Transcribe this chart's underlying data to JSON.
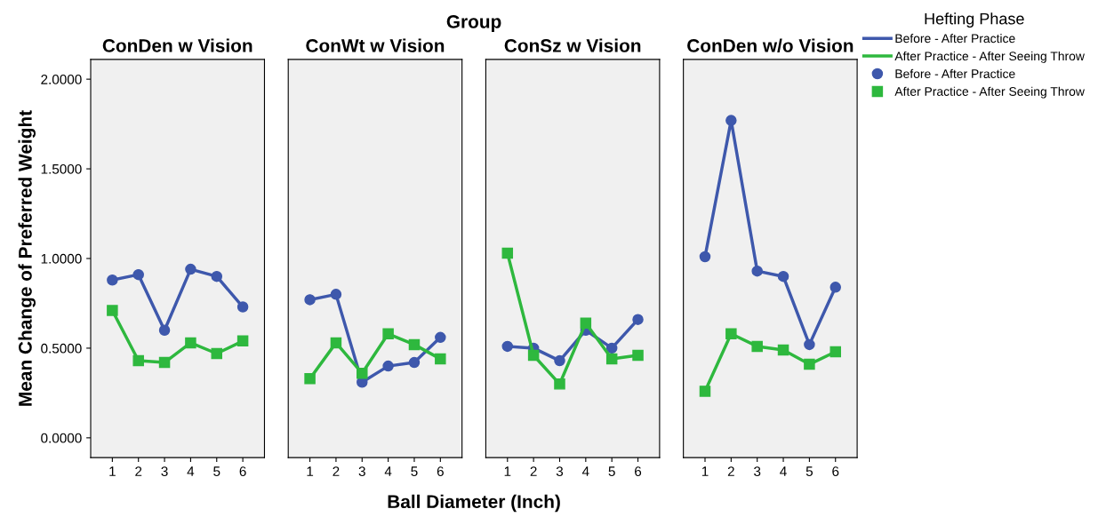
{
  "chart_data": [
    {
      "type": "line",
      "title": "ConDen w Vision",
      "ylabel": "Mean Change of Preferred Weight",
      "categories": [
        "1",
        "2",
        "3",
        "4",
        "5",
        "6"
      ],
      "ylim": [
        -0.11,
        2.11
      ],
      "yticks": [
        {
          "value": 0,
          "label": "0.0000"
        },
        {
          "value": 0.5,
          "label": "0.5000"
        },
        {
          "value": 1,
          "label": "1.0000"
        },
        {
          "value": 1.5,
          "label": "1.5000"
        },
        {
          "value": 2,
          "label": "2.0000"
        }
      ],
      "grid": false,
      "series": [
        {
          "color": "#3e58ac",
          "marker": "circle",
          "values": [
            0.88,
            0.91,
            0.6,
            0.94,
            0.9,
            0.73
          ]
        },
        {
          "color": "#2eb83e",
          "marker": "square",
          "values": [
            0.71,
            0.43,
            0.42,
            0.53,
            0.47,
            0.54
          ]
        }
      ]
    },
    {
      "type": "line",
      "title": "ConWt w Vision",
      "annotations": [
        "Group",
        "Ball Diameter (Inch)"
      ],
      "categories": [
        "1",
        "2",
        "3",
        "4",
        "5",
        "6"
      ],
      "ylim": [
        -0.11,
        2.11
      ],
      "tick_labels": "x",
      "grid": false,
      "series": [
        {
          "color": "#3e58ac",
          "marker": "circle",
          "values": [
            0.77,
            0.8,
            0.31,
            0.4,
            0.42,
            0.56
          ]
        },
        {
          "color": "#2eb83e",
          "marker": "square",
          "values": [
            0.33,
            0.53,
            0.36,
            0.58,
            0.52,
            0.44
          ]
        }
      ]
    },
    {
      "type": "line",
      "title": "ConSz w Vision",
      "categories": [
        "1",
        "2",
        "3",
        "4",
        "5",
        "6"
      ],
      "ylim": [
        -0.11,
        2.11
      ],
      "tick_labels": "x",
      "grid": false,
      "series": [
        {
          "color": "#3e58ac",
          "marker": "circle",
          "values": [
            0.51,
            0.5,
            0.43,
            0.6,
            0.5,
            0.66
          ]
        },
        {
          "color": "#2eb83e",
          "marker": "square",
          "values": [
            1.03,
            0.46,
            0.3,
            0.64,
            0.44,
            0.46
          ]
        }
      ]
    },
    {
      "type": "line",
      "title": "ConDen w/o Vision",
      "legend_title": "Hefting Phase",
      "categories": [
        "1",
        "2",
        "3",
        "4",
        "5",
        "6"
      ],
      "ylim": [
        -0.11,
        2.11
      ],
      "tick_labels": "x",
      "grid": false,
      "legend": "right",
      "series": [
        {
          "name": "Before - After Practice",
          "color": "#3e58ac",
          "marker": "circle",
          "values": [
            1.01,
            1.77,
            0.93,
            0.9,
            0.52,
            0.84
          ]
        },
        {
          "name": "After Practice - After Seeing Throw",
          "color": "#2eb83e",
          "marker": "square",
          "values": [
            0.26,
            0.58,
            0.51,
            0.49,
            0.41,
            0.48
          ]
        }
      ]
    }
  ]
}
